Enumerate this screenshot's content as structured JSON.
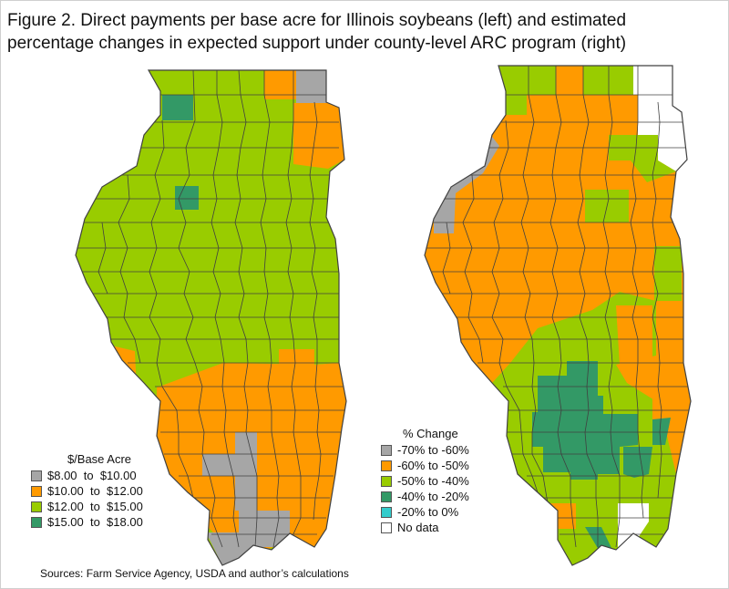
{
  "title_line1": "Figure 2. Direct payments per base acre for Illinois soybeans (left) and estimated",
  "title_line2": "percentage changes in expected support under county-level ARC program (right)",
  "source": "Sources: Farm Service Agency, USDA and author’s calculations",
  "colors": {
    "gray": "#a6a6a6",
    "orange": "#ff9a00",
    "lightgreen": "#99cc00",
    "darkgreen": "#339966",
    "cyan": "#33cccc",
    "white": "#ffffff",
    "border": "#404040"
  },
  "left_legend": {
    "title": "$/Base Acre",
    "items": [
      {
        "label": "$8.00  to  $10.00",
        "color": "#a6a6a6"
      },
      {
        "label": "$10.00  to  $12.00",
        "color": "#ff9a00"
      },
      {
        "label": "$12.00  to  $15.00",
        "color": "#99cc00"
      },
      {
        "label": "$15.00  to  $18.00",
        "color": "#339966"
      }
    ]
  },
  "right_legend": {
    "title": "% Change",
    "items": [
      {
        "label": "-70% to -60%",
        "color": "#a6a6a6"
      },
      {
        "label": "-60% to -50%",
        "color": "#ff9a00"
      },
      {
        "label": "-50% to -40%",
        "color": "#99cc00"
      },
      {
        "label": "-40% to -20%",
        "color": "#339966"
      },
      {
        "label": "-20% to 0%",
        "color": "#33cccc"
      },
      {
        "label": "No data",
        "color": "#ffffff"
      }
    ]
  },
  "left_map": {
    "name": "direct-payments-map",
    "regions": [
      {
        "class": "darkgreen",
        "note": "Jo Daviess"
      },
      {
        "class": "darkgreen",
        "note": "Bureau area"
      },
      {
        "class": "gray",
        "note": "Lake"
      },
      {
        "class": "orange",
        "note": "McHenry"
      },
      {
        "class": "orange",
        "note": "Cook / Will"
      },
      {
        "class": "orange",
        "note": "Southern counties"
      },
      {
        "class": "gray",
        "note": "Southern gray counties"
      },
      {
        "class": "gray",
        "note": "Southern tip"
      },
      {
        "class": "orange",
        "note": "Western bend"
      }
    ]
  },
  "right_map": {
    "name": "arc-change-map",
    "regions": [
      {
        "class": "gray",
        "note": "Western river counties"
      },
      {
        "class": "white",
        "note": "Northeast no data"
      },
      {
        "class": "darkgreen",
        "note": "South central"
      },
      {
        "class": "white",
        "note": "Southeast no data"
      }
    ]
  }
}
